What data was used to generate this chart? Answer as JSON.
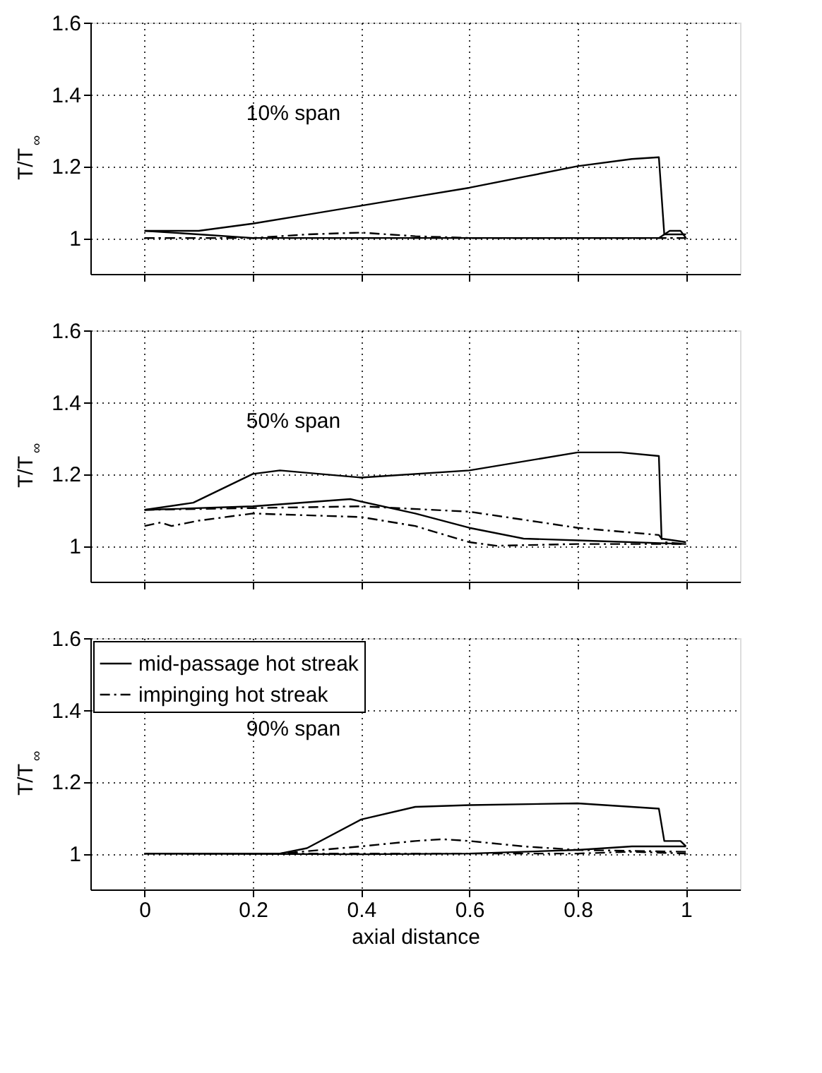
{
  "chart_data": [
    {
      "type": "line",
      "ylabel": "T/T$_{∞}$",
      "annotations": [
        "10% span"
      ],
      "xlim": [
        -0.1,
        1.1
      ],
      "ylim": [
        0.9,
        1.6
      ],
      "xticks": [
        0,
        0.2,
        0.4,
        0.6,
        0.8,
        1
      ],
      "yticks": [
        1,
        1.2,
        1.4,
        1.6
      ],
      "grid": true,
      "legend": false,
      "tick_labels": "y",
      "marker": "none",
      "series": [
        {
          "color": "#000000",
          "line_style": "solid",
          "x": [
            0,
            0.1,
            0.2,
            0.3,
            0.4,
            0.5,
            0.6,
            0.7,
            0.8,
            0.9,
            0.95,
            0.96,
            0.98,
            1.0
          ],
          "values": [
            1.02,
            1.02,
            1.04,
            1.065,
            1.09,
            1.115,
            1.14,
            1.17,
            1.2,
            1.22,
            1.225,
            1.01,
            1.01,
            1.01
          ]
        },
        {
          "color": "#000000",
          "line_style": "solid",
          "x": [
            0,
            0.1,
            0.2,
            0.4,
            0.6,
            0.8,
            0.95,
            0.97,
            0.99,
            1.0
          ],
          "values": [
            1.02,
            1.01,
            1.0,
            1.0,
            1.0,
            1.0,
            1.0,
            1.02,
            1.02,
            1.0
          ]
        },
        {
          "color": "#000000",
          "line_style": "dashed",
          "x": [
            0,
            0.2,
            0.3,
            0.4,
            0.5,
            0.6,
            0.8,
            1.0
          ],
          "values": [
            1.0,
            1.0,
            1.01,
            1.015,
            1.005,
            1.0,
            1.0,
            1.0
          ]
        },
        {
          "color": "#000000",
          "line_style": "dashed",
          "x": [
            0,
            0.5,
            1.0
          ],
          "values": [
            1.0,
            1.0,
            1.0
          ]
        }
      ]
    },
    {
      "type": "line",
      "ylabel": "T/T$_{∞}$",
      "annotations": [
        "50% span"
      ],
      "xlim": [
        -0.1,
        1.1
      ],
      "ylim": [
        0.9,
        1.6
      ],
      "xticks": [
        0,
        0.2,
        0.4,
        0.6,
        0.8,
        1
      ],
      "yticks": [
        1,
        1.2,
        1.4,
        1.6
      ],
      "grid": true,
      "legend": false,
      "tick_labels": "y",
      "marker": "none",
      "series": [
        {
          "color": "#000000",
          "line_style": "solid",
          "x": [
            0,
            0.09,
            0.2,
            0.25,
            0.4,
            0.6,
            0.8,
            0.88,
            0.95,
            0.955,
            1.0
          ],
          "values": [
            1.1,
            1.12,
            1.2,
            1.21,
            1.19,
            1.21,
            1.26,
            1.26,
            1.25,
            1.02,
            1.01
          ]
        },
        {
          "color": "#000000",
          "line_style": "solid",
          "x": [
            0,
            0.2,
            0.38,
            0.5,
            0.6,
            0.7,
            0.8,
            1.0
          ],
          "values": [
            1.1,
            1.11,
            1.13,
            1.09,
            1.05,
            1.02,
            1.015,
            1.005
          ]
        },
        {
          "color": "#000000",
          "line_style": "dashed",
          "x": [
            0,
            0.2,
            0.4,
            0.6,
            0.8,
            0.95,
            0.96,
            1.0
          ],
          "values": [
            1.1,
            1.105,
            1.11,
            1.095,
            1.05,
            1.03,
            1.01,
            1.005
          ]
        },
        {
          "color": "#000000",
          "line_style": "dashed",
          "x": [
            0,
            0.03,
            0.05,
            0.1,
            0.2,
            0.4,
            0.5,
            0.6,
            0.65,
            0.8,
            1.0
          ],
          "values": [
            1.055,
            1.065,
            1.055,
            1.07,
            1.09,
            1.08,
            1.055,
            1.01,
            1.0,
            1.005,
            1.005
          ]
        }
      ]
    },
    {
      "type": "line",
      "xlabel": "axial distance",
      "ylabel": "T/T$_{∞}$",
      "annotations": [
        "90% span"
      ],
      "xlim": [
        -0.1,
        1.1
      ],
      "ylim": [
        0.9,
        1.6
      ],
      "xticks": [
        0,
        0.2,
        0.4,
        0.6,
        0.8,
        1
      ],
      "yticks": [
        1,
        1.2,
        1.4,
        1.6
      ],
      "grid": true,
      "legend": "top left",
      "marker": "none",
      "series": [
        {
          "name": "mid-passage hot streak",
          "color": "#000000",
          "line_style": "solid",
          "x": [
            0,
            0.25,
            0.3,
            0.4,
            0.5,
            0.6,
            0.8,
            0.9,
            0.95,
            0.96,
            0.99,
            1.0
          ],
          "values": [
            1.0,
            1.0,
            1.015,
            1.095,
            1.13,
            1.135,
            1.14,
            1.13,
            1.125,
            1.035,
            1.035,
            1.02
          ]
        },
        {
          "color": "#000000",
          "line_style": "solid",
          "x": [
            0,
            0.4,
            0.6,
            0.8,
            0.9,
            1.0
          ],
          "values": [
            1.0,
            0.998,
            1.0,
            1.01,
            1.02,
            1.02
          ]
        },
        {
          "name": "impinging hot streak",
          "color": "#000000",
          "line_style": "dashed",
          "x": [
            0,
            0.25,
            0.4,
            0.5,
            0.55,
            0.6,
            0.7,
            0.8,
            1.0
          ],
          "values": [
            1.0,
            1.0,
            1.02,
            1.035,
            1.04,
            1.035,
            1.02,
            1.01,
            1.005
          ]
        },
        {
          "color": "#000000",
          "line_style": "dashed",
          "x": [
            0,
            0.4,
            0.8,
            0.9,
            1.0
          ],
          "values": [
            1.0,
            1.0,
            1.0,
            1.005,
            1.0
          ]
        }
      ]
    }
  ]
}
